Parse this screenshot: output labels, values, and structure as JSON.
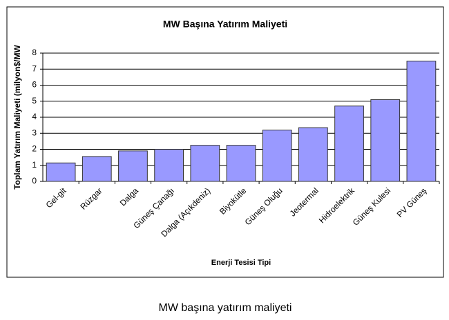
{
  "chart_data": {
    "type": "bar",
    "title": "MW Başına Yatırım Maliyeti",
    "x_label": "Enerji Tesisi Tipi",
    "y_label": "Toplam Yatırım Maliyeti (milyon$/MW",
    "categories": [
      "Gel-git",
      "Rüzgar",
      "Dalga",
      "Güneş Çanağı",
      "Dalga (Açıkdeniz)",
      "Biyokütle",
      "Güneş Oluğu",
      "Jeotermal",
      "Hidroelektrik",
      "Güneş Kulesi",
      "PV Güneş"
    ],
    "values": [
      1.15,
      1.55,
      1.9,
      2.0,
      2.25,
      2.25,
      3.2,
      3.35,
      4.7,
      5.1,
      7.5
    ],
    "color": "#9999ff",
    "ylim": [
      0,
      8
    ],
    "yticks": [
      0,
      1,
      2,
      3,
      4,
      5,
      6,
      7,
      8
    ],
    "grid": true
  },
  "caption": "MW başına yatırım maliyeti"
}
